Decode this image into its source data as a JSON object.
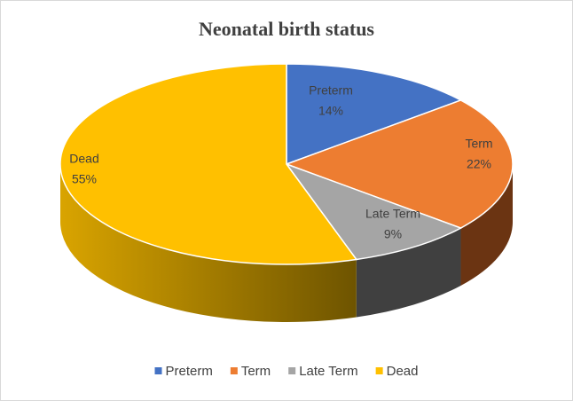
{
  "chart_data": {
    "type": "pie3d",
    "title": "Neonatal birth status",
    "categories": [
      "Preterm",
      "Term",
      "Late Term",
      "Dead"
    ],
    "values": [
      14,
      22,
      9,
      55
    ],
    "value_labels": [
      "14%",
      "22%",
      "9%",
      "55%"
    ],
    "colors": [
      "#4472c4",
      "#ed7d31",
      "#a5a5a5",
      "#ffc000"
    ],
    "legend": "bottom"
  }
}
